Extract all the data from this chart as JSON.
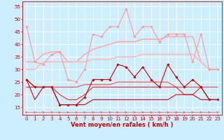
{
  "x": [
    0,
    1,
    2,
    3,
    4,
    5,
    6,
    7,
    8,
    9,
    10,
    11,
    12,
    13,
    14,
    15,
    16,
    17,
    18,
    19,
    20,
    21,
    22,
    23
  ],
  "lines": [
    {
      "y": [
        47,
        33,
        32,
        36,
        37,
        26,
        25,
        30,
        44,
        43,
        47,
        47,
        54,
        43,
        47,
        47,
        41,
        44,
        44,
        44,
        33,
        44,
        30,
        30
      ],
      "color": "#ff9999",
      "lw": 0.8,
      "marker": "D",
      "ms": 1.8,
      "zorder": 3
    },
    {
      "y": [
        33,
        33,
        36,
        37,
        37,
        33,
        33,
        36,
        38,
        39,
        40,
        41,
        41,
        41,
        42,
        42,
        42,
        43,
        43,
        43,
        43,
        33,
        30,
        30
      ],
      "color": "#ffaaaa",
      "lw": 1.2,
      "marker": null,
      "ms": 0,
      "zorder": 2
    },
    {
      "y": [
        30,
        30,
        33,
        33,
        33,
        33,
        33,
        33,
        34,
        34,
        34,
        35,
        35,
        35,
        36,
        36,
        36,
        36,
        36,
        36,
        36,
        33,
        30,
        30
      ],
      "color": "#ffbbbb",
      "lw": 1.2,
      "marker": null,
      "ms": 0,
      "zorder": 2
    },
    {
      "y": [
        26,
        23,
        23,
        23,
        16,
        16,
        16,
        19,
        26,
        26,
        26,
        32,
        31,
        27,
        31,
        26,
        23,
        32,
        27,
        23,
        26,
        23,
        18,
        18
      ],
      "color": "#cc0000",
      "lw": 0.8,
      "marker": "D",
      "ms": 1.8,
      "zorder": 4
    },
    {
      "y": [
        26,
        23,
        23,
        23,
        23,
        23,
        23,
        24,
        24,
        24,
        24,
        25,
        25,
        25,
        25,
        25,
        25,
        25,
        23,
        23,
        23,
        23,
        23,
        23
      ],
      "color": "#ff4444",
      "lw": 0.8,
      "marker": null,
      "ms": 0,
      "zorder": 3
    },
    {
      "y": [
        23,
        23,
        23,
        23,
        20,
        18,
        18,
        20,
        23,
        23,
        23,
        23,
        23,
        23,
        23,
        23,
        23,
        23,
        23,
        20,
        20,
        23,
        18,
        18
      ],
      "color": "#ff2222",
      "lw": 0.8,
      "marker": null,
      "ms": 0,
      "zorder": 3
    },
    {
      "y": [
        26,
        18,
        23,
        23,
        16,
        16,
        16,
        16,
        18,
        18,
        18,
        18,
        18,
        18,
        18,
        18,
        18,
        18,
        20,
        20,
        20,
        18,
        18,
        18
      ],
      "color": "#dd0000",
      "lw": 0.8,
      "marker": null,
      "ms": 0,
      "zorder": 3
    },
    {
      "y": [
        13,
        13,
        13,
        13,
        13,
        13,
        13,
        13,
        13,
        13,
        13,
        13,
        13,
        13,
        13,
        13,
        13,
        13,
        13,
        13,
        13,
        13,
        13,
        13
      ],
      "color": "#ff6666",
      "lw": 0.6,
      "marker": ">",
      "ms": 2.2,
      "zorder": 2
    }
  ],
  "xlabel": "Vent moyen/en rafales ( km/h )",
  "xlim": [
    -0.5,
    23.5
  ],
  "ylim": [
    12,
    57
  ],
  "yticks": [
    15,
    20,
    25,
    30,
    35,
    40,
    45,
    50,
    55
  ],
  "xticks": [
    0,
    1,
    2,
    3,
    4,
    5,
    6,
    7,
    8,
    9,
    10,
    11,
    12,
    13,
    14,
    15,
    16,
    17,
    18,
    19,
    20,
    21,
    22,
    23
  ],
  "bg_color": "#cceeff",
  "grid_color": "#ffffff",
  "axis_color": "#cc0000",
  "tick_color": "#cc0000",
  "label_color": "#cc0000",
  "tick_fontsize": 5.0,
  "xlabel_fontsize": 6.0
}
